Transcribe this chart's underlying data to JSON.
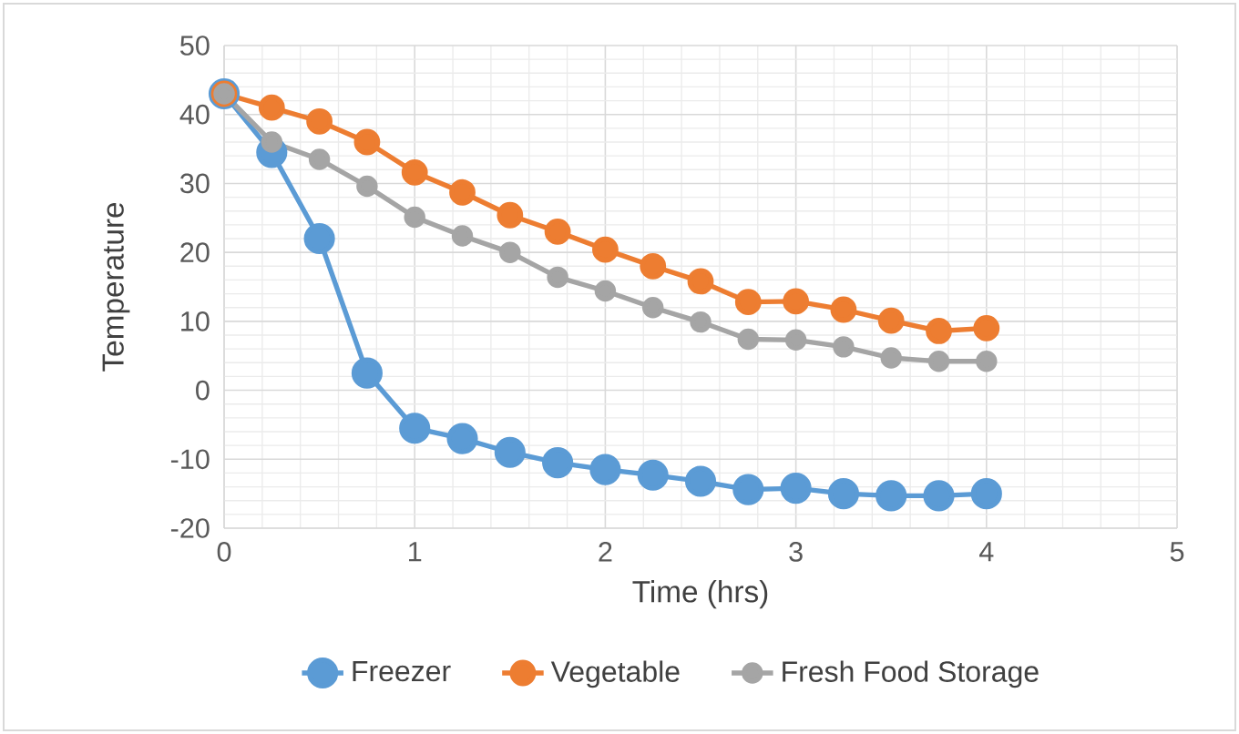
{
  "chart_data": {
    "type": "line",
    "xlabel": "Time (hrs)",
    "ylabel": "Temperature",
    "x": [
      0,
      0.25,
      0.5,
      0.75,
      1,
      1.25,
      1.5,
      1.75,
      2,
      2.25,
      2.5,
      2.75,
      3,
      3.25,
      3.5,
      3.75,
      4
    ],
    "series": [
      {
        "name": "Freezer",
        "color": "#5b9bd5",
        "values": [
          43,
          34.5,
          22,
          2.5,
          -5.5,
          -7,
          -9,
          -10.5,
          -11.5,
          -12.3,
          -13.2,
          -14.4,
          -14.2,
          -15,
          -15.3,
          -15.3,
          -15
        ]
      },
      {
        "name": "Vegetable",
        "color": "#ed7d31",
        "values": [
          43,
          41,
          39,
          36,
          31.6,
          28.7,
          25.4,
          23,
          20.4,
          18,
          15.8,
          12.8,
          12.9,
          11.7,
          10.1,
          8.6,
          9
        ]
      },
      {
        "name": "Fresh Food Storage",
        "color": "#a5a5a5",
        "values": [
          43,
          36,
          33.5,
          29.6,
          25.1,
          22.4,
          20,
          16.4,
          14.4,
          12,
          9.9,
          7.4,
          7.3,
          6.3,
          4.7,
          4.2,
          4.2
        ]
      }
    ],
    "xlim": [
      0,
      5
    ],
    "ylim": [
      -20,
      50
    ],
    "xticks": [
      0,
      1,
      2,
      3,
      4,
      5
    ],
    "yticks": [
      -20,
      -10,
      0,
      10,
      20,
      30,
      40,
      50
    ],
    "grid": true,
    "legend": "bottom",
    "marker": "circle",
    "line_style": "solid"
  }
}
